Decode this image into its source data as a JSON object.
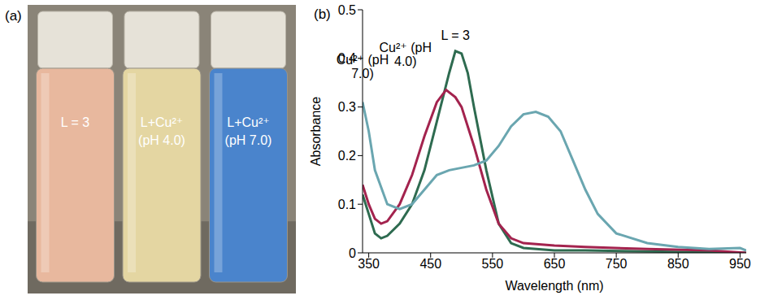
{
  "panel_a": {
    "letter": "(a)",
    "vials": [
      {
        "label": "L = 3",
        "color": "#e8b89e"
      },
      {
        "label": "L+Cu²⁺ (pH 4.0)",
        "color": "#e4d6a2"
      },
      {
        "label": "L+Cu²⁺ (pH 7.0)",
        "color": "#4a84cc"
      }
    ]
  },
  "panel_b_letter": "(b)",
  "chart_data": {
    "type": "line",
    "x_label": "Wavelength (nm)",
    "y_label": "Absorbance",
    "xlim": [
      340,
      960
    ],
    "xticks": [
      350,
      450,
      550,
      650,
      750,
      850,
      950
    ],
    "ylim": [
      0,
      0.5
    ],
    "yticks": [
      0,
      0.1,
      0.2,
      0.3,
      0.4,
      0.5
    ],
    "grid": false,
    "series": [
      {
        "name": "L = 3",
        "color": "#2e6b50",
        "x": [
          340,
          350,
          360,
          370,
          380,
          400,
          420,
          440,
          460,
          480,
          490,
          500,
          510,
          520,
          540,
          560,
          580,
          600,
          650,
          700,
          800,
          960
        ],
        "values": [
          0.12,
          0.08,
          0.04,
          0.03,
          0.035,
          0.06,
          0.1,
          0.17,
          0.27,
          0.37,
          0.415,
          0.41,
          0.37,
          0.3,
          0.17,
          0.06,
          0.02,
          0.01,
          0.005,
          0.005,
          0.003,
          0
        ]
      },
      {
        "name": "Cu²⁺ (pH 4.0)",
        "color": "#a3234e",
        "x": [
          340,
          350,
          360,
          370,
          380,
          400,
          420,
          440,
          460,
          475,
          490,
          500,
          520,
          540,
          560,
          580,
          600,
          650,
          700,
          800,
          900,
          960
        ],
        "values": [
          0.14,
          0.1,
          0.07,
          0.06,
          0.065,
          0.1,
          0.16,
          0.24,
          0.31,
          0.335,
          0.32,
          0.3,
          0.22,
          0.13,
          0.06,
          0.03,
          0.02,
          0.015,
          0.012,
          0.008,
          0.005,
          0
        ]
      },
      {
        "name": "Cu²⁺ (pH 7.0)",
        "color": "#6aa6b0",
        "x": [
          340,
          350,
          360,
          380,
          400,
          420,
          440,
          460,
          480,
          500,
          520,
          540,
          560,
          580,
          600,
          620,
          640,
          660,
          680,
          700,
          720,
          750,
          800,
          850,
          900,
          950,
          960
        ],
        "values": [
          0.31,
          0.25,
          0.17,
          0.1,
          0.09,
          0.1,
          0.13,
          0.16,
          0.17,
          0.175,
          0.18,
          0.19,
          0.22,
          0.26,
          0.285,
          0.29,
          0.28,
          0.25,
          0.19,
          0.13,
          0.08,
          0.04,
          0.02,
          0.012,
          0.008,
          0.01,
          0.005
        ]
      }
    ]
  }
}
